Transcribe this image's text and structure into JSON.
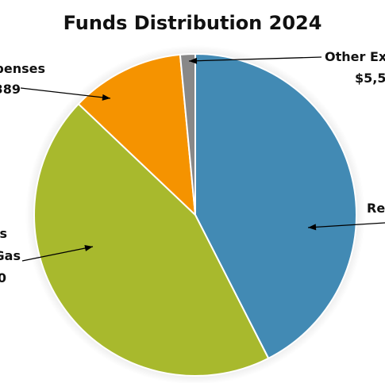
{
  "chart_data": {
    "type": "pie",
    "title": "Funds Distribution 2024",
    "slices": [
      {
        "key": "re",
        "label_lines": [
          "Re"
        ],
        "value": 42.5,
        "color": "#428ab4"
      },
      {
        "key": "gas",
        "label_lines": [
          "ds",
          "Gas",
          "0"
        ],
        "value": 44.6,
        "color": "#a8b92d"
      },
      {
        "key": "expenses",
        "label_lines": [
          "penses",
          "389"
        ],
        "value": 11.4,
        "color": "#f59300"
      },
      {
        "key": "other",
        "label_lines": [
          "Other Ex",
          "$5,5"
        ],
        "value": 1.5,
        "color": "#888888"
      }
    ],
    "start_angle_deg": 0,
    "direction": "clockwise",
    "legend": "none",
    "grid": false
  }
}
